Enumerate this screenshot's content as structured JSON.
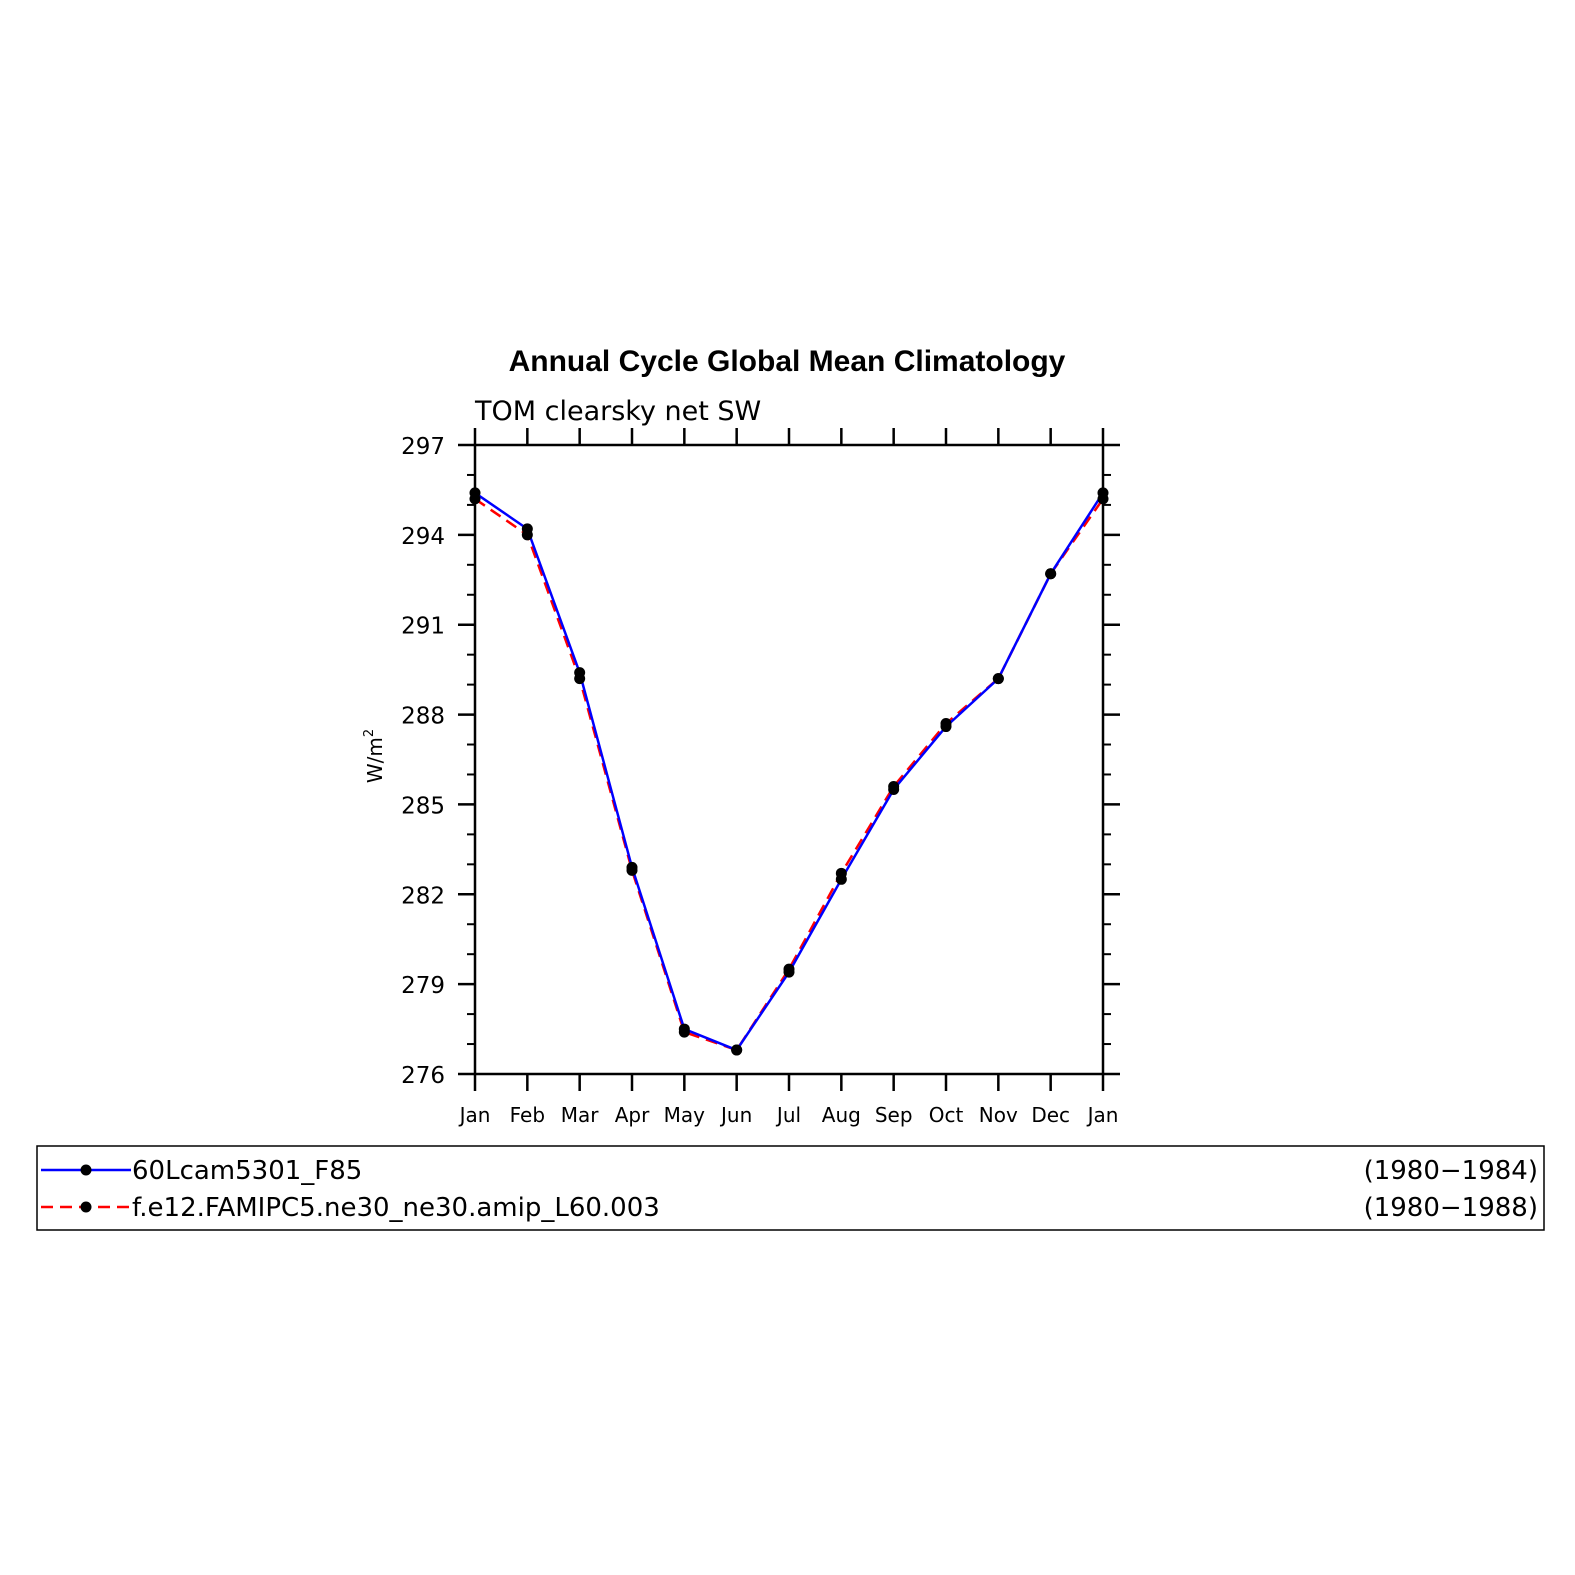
{
  "chart_data": {
    "type": "line",
    "title": "Annual Cycle Global Mean Climatology",
    "subtitle": "TOM clearsky net SW",
    "ylabel": "W/m",
    "ylabel_sup": "2",
    "ylim": [
      276,
      297
    ],
    "yticks": [
      "276",
      "279",
      "282",
      "285",
      "288",
      "291",
      "294",
      "297"
    ],
    "categories": [
      "Jan",
      "Feb",
      "Mar",
      "Apr",
      "May",
      "Jun",
      "Jul",
      "Aug",
      "Sep",
      "Oct",
      "Nov",
      "Dec",
      "Jan"
    ],
    "series": [
      {
        "name": "60Lcam5301_F85",
        "period": "(1980−1984)",
        "color": "#0000ff",
        "dash": "solid",
        "values": [
          295.4,
          294.2,
          289.4,
          282.9,
          277.5,
          276.8,
          279.4,
          282.5,
          285.5,
          287.6,
          289.2,
          292.7,
          295.4
        ]
      },
      {
        "name": "f.e12.FAMIPC5.ne30_ne30.amip_L60.003",
        "period": "(1980−1988)",
        "color": "#ff0000",
        "dash": "dashed",
        "values": [
          295.2,
          294.0,
          289.2,
          282.8,
          277.4,
          276.8,
          279.5,
          282.7,
          285.6,
          287.7,
          289.2,
          292.7,
          295.2
        ]
      }
    ],
    "marker": "filled-circle",
    "marker_color": "#000000",
    "legend_position": "below"
  }
}
